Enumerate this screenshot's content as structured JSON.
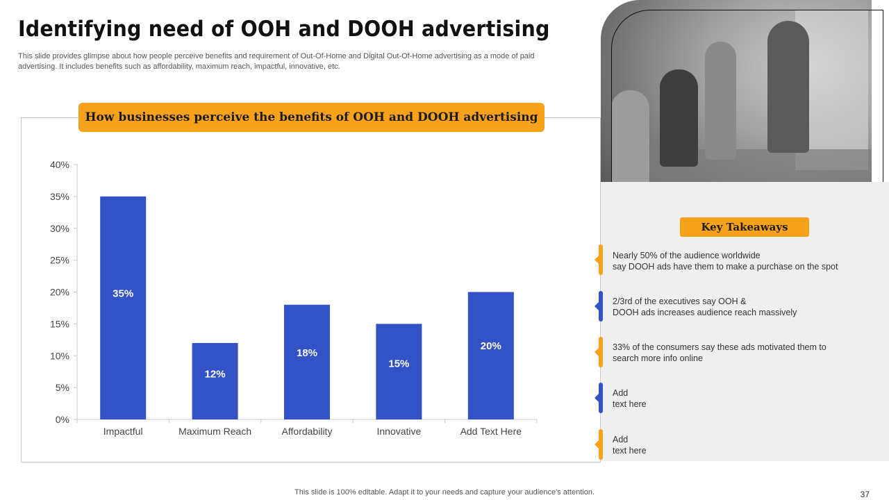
{
  "slide": {
    "title": "Identifying need of OOH and DOOH advertising",
    "subtitle": "This slide provides glimpse about how people perceive benefits and requirement of Out-Of-Home and Digital Out-Of-Home advertising as a mode of paid advertising. It includes benefits such as affordability, maximum reach, impactful, innovative, etc.",
    "footer": "This slide is 100% editable. Adapt it to your needs and capture your audience's attention.",
    "page_number": "37"
  },
  "chart_data": {
    "type": "bar",
    "title": "How businesses perceive the benefits of OOH and DOOH advertising",
    "categories": [
      "Impactful",
      "Maximum Reach",
      "Affordability",
      "Innovative",
      "Add Text Here"
    ],
    "values": [
      35,
      12,
      18,
      15,
      20
    ],
    "data_labels": [
      "35%",
      "12%",
      "18%",
      "15%",
      "20%"
    ],
    "y_ticks": [
      "0%",
      "5%",
      "10%",
      "15%",
      "20%",
      "25%",
      "30%",
      "35%",
      "40%"
    ],
    "ylim": [
      0,
      40
    ],
    "xlabel": "",
    "ylabel": "",
    "bar_color": "#3352c6",
    "grid": false
  },
  "takeaways": {
    "heading": "Key Takeaways",
    "items": [
      {
        "line1": "Nearly 50% of the audience worldwide",
        "line2": "say DOOH ads have them to make a purchase on the spot",
        "color": "orange"
      },
      {
        "line1": "2/3rd of the executives say OOH &",
        "line2": "DOOH ads increases audience reach massively",
        "color": "blue"
      },
      {
        "line1": "33% of the consumers say these ads motivated them to",
        "line2": "search more info online",
        "color": "orange"
      },
      {
        "line1": "Add",
        "line2": "text here",
        "color": "blue"
      },
      {
        "line1": "Add",
        "line2": "text here",
        "color": "orange"
      }
    ]
  },
  "colors": {
    "accent_orange": "#f8a11a",
    "accent_blue": "#3352c6",
    "panel_gray": "#efefef"
  }
}
